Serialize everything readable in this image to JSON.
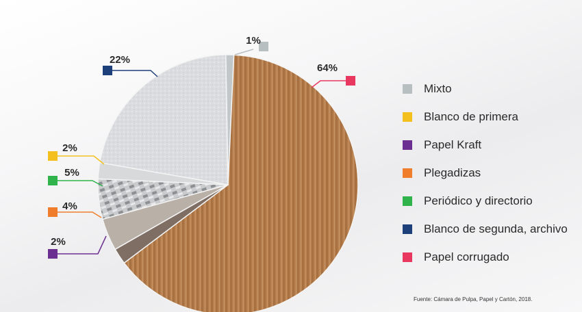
{
  "chart_data": {
    "type": "pie",
    "categories": [
      "Mixto",
      "Papel corrugado",
      "Papel Kraft",
      "Plegadizas",
      "Periódico y directorio",
      "Blanco de primera",
      "Blanco de segunda, archivo"
    ],
    "values": [
      1,
      64,
      2,
      4,
      5,
      2,
      22
    ],
    "value_labels": [
      "1%",
      "64%",
      "2%",
      "4%",
      "5%",
      "2%",
      "22%"
    ],
    "colors": [
      "#b7bfc1",
      "#e8385f",
      "#6b2f92",
      "#ef7d2c",
      "#2fb34a",
      "#f4c01e",
      "#1d3f7a"
    ],
    "legend_placement": "right",
    "legend": [
      {
        "label": "Mixto",
        "color": "#b7bfc1"
      },
      {
        "label": "Blanco de primera",
        "color": "#f4c01e"
      },
      {
        "label": "Papel Kraft",
        "color": "#6b2f92"
      },
      {
        "label": "Plegadizas",
        "color": "#ef7d2c"
      },
      {
        "label": "Periódico y directorio",
        "color": "#2fb34a"
      },
      {
        "label": "Blanco de segunda, archivo",
        "color": "#1d3f7a"
      },
      {
        "label": "Papel corrugado",
        "color": "#e8385f"
      }
    ]
  },
  "source": "Fuente: Cámara de Pulpa, Papel y Cartón, 2018."
}
